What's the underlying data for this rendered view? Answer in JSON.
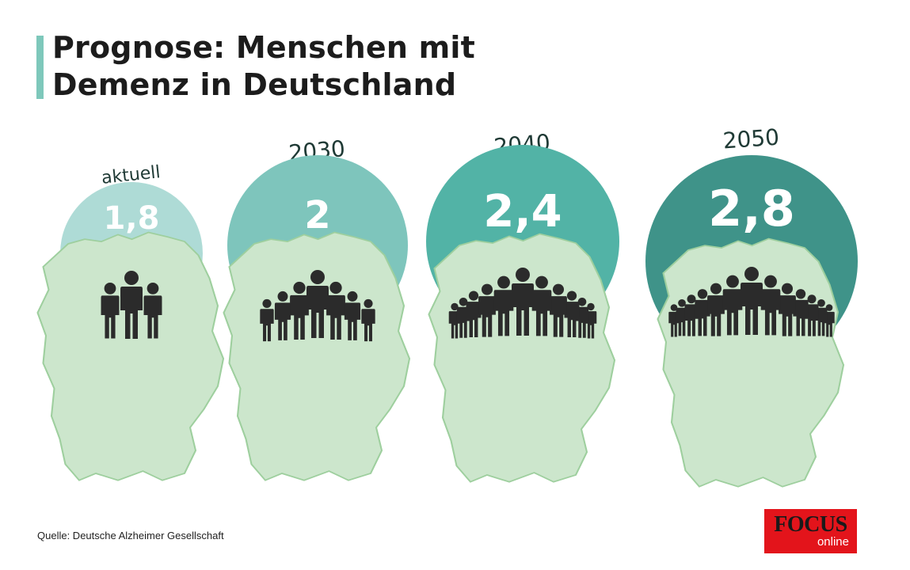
{
  "title": {
    "line1": "Prognose: Menschen mit",
    "line2": "Demenz in Deutschland"
  },
  "colors": {
    "accent": "#7ec8bb",
    "map": "#cce6cc",
    "map_border": "#9ecf9e",
    "people": "#2b2b2b",
    "label": "#1f3a35"
  },
  "chart_data": {
    "type": "bar",
    "categories": [
      "aktuell",
      "2030",
      "2040",
      "2050"
    ],
    "value_labels": [
      "1,8",
      "2",
      "2,4",
      "2,8"
    ],
    "values": [
      1.8,
      2.0,
      2.4,
      2.8
    ],
    "bubble_colors": [
      "#aedbd6",
      "#7ec5bc",
      "#52b3a6",
      "#3f9389"
    ],
    "ylabel": "",
    "xlabel": ""
  },
  "source": "Quelle: Deutsche Alzheimer Gesellschaft",
  "logo": {
    "focus": "FOCUS",
    "online": "online"
  }
}
